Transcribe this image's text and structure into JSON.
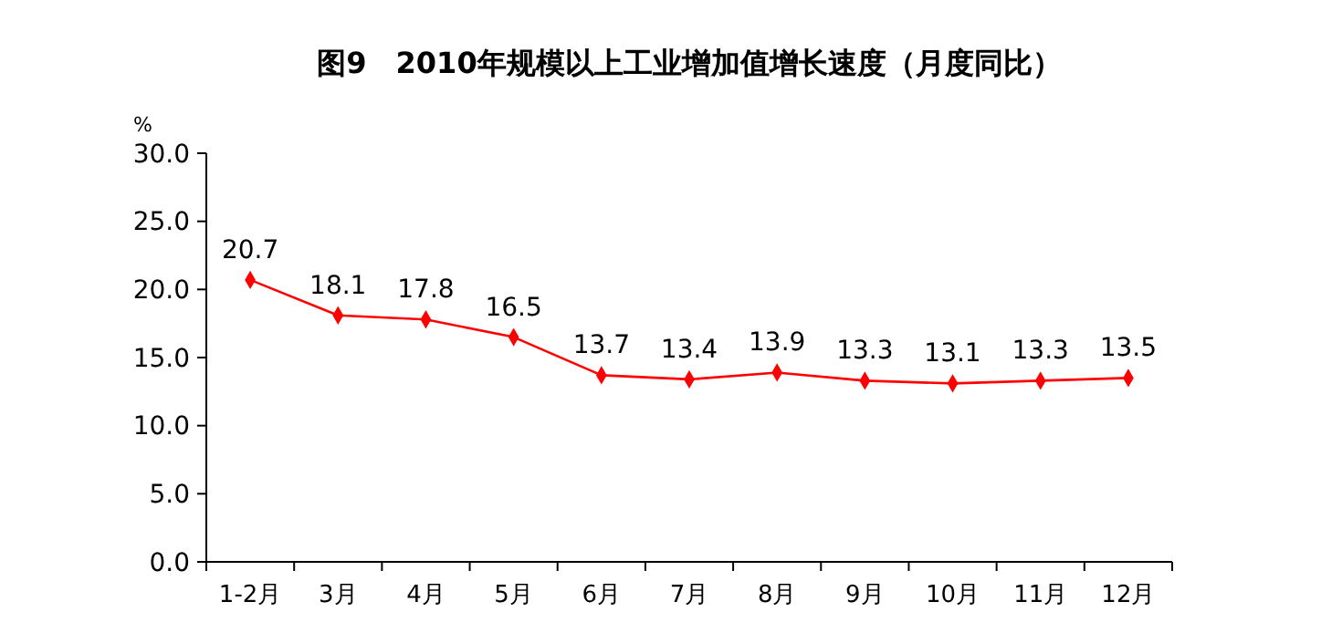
{
  "chart_data": {
    "type": "line",
    "title": "图9　2010年规模以上工业增加值增长速度（月度同比）",
    "ylabel": "%",
    "categories": [
      "1-2月",
      "3月",
      "4月",
      "5月",
      "6月",
      "7月",
      "8月",
      "9月",
      "10月",
      "11月",
      "12月"
    ],
    "series": [
      {
        "color": "#ff0000",
        "values": [
          20.7,
          18.1,
          17.8,
          16.5,
          13.7,
          13.4,
          13.9,
          13.3,
          13.1,
          13.3,
          13.5
        ]
      }
    ],
    "ylim": [
      0,
      30
    ],
    "yticks": [
      {
        "value": 0,
        "label": "0.0"
      },
      {
        "value": 5,
        "label": "5.0"
      },
      {
        "value": 10,
        "label": "10.0"
      },
      {
        "value": 15,
        "label": "15.0"
      },
      {
        "value": 20,
        "label": "20.0"
      },
      {
        "value": 25,
        "label": "25.0"
      },
      {
        "value": 30,
        "label": "30.0"
      }
    ],
    "grid": false,
    "marker": "diamond",
    "line_style": "solid",
    "data_labels": true
  }
}
